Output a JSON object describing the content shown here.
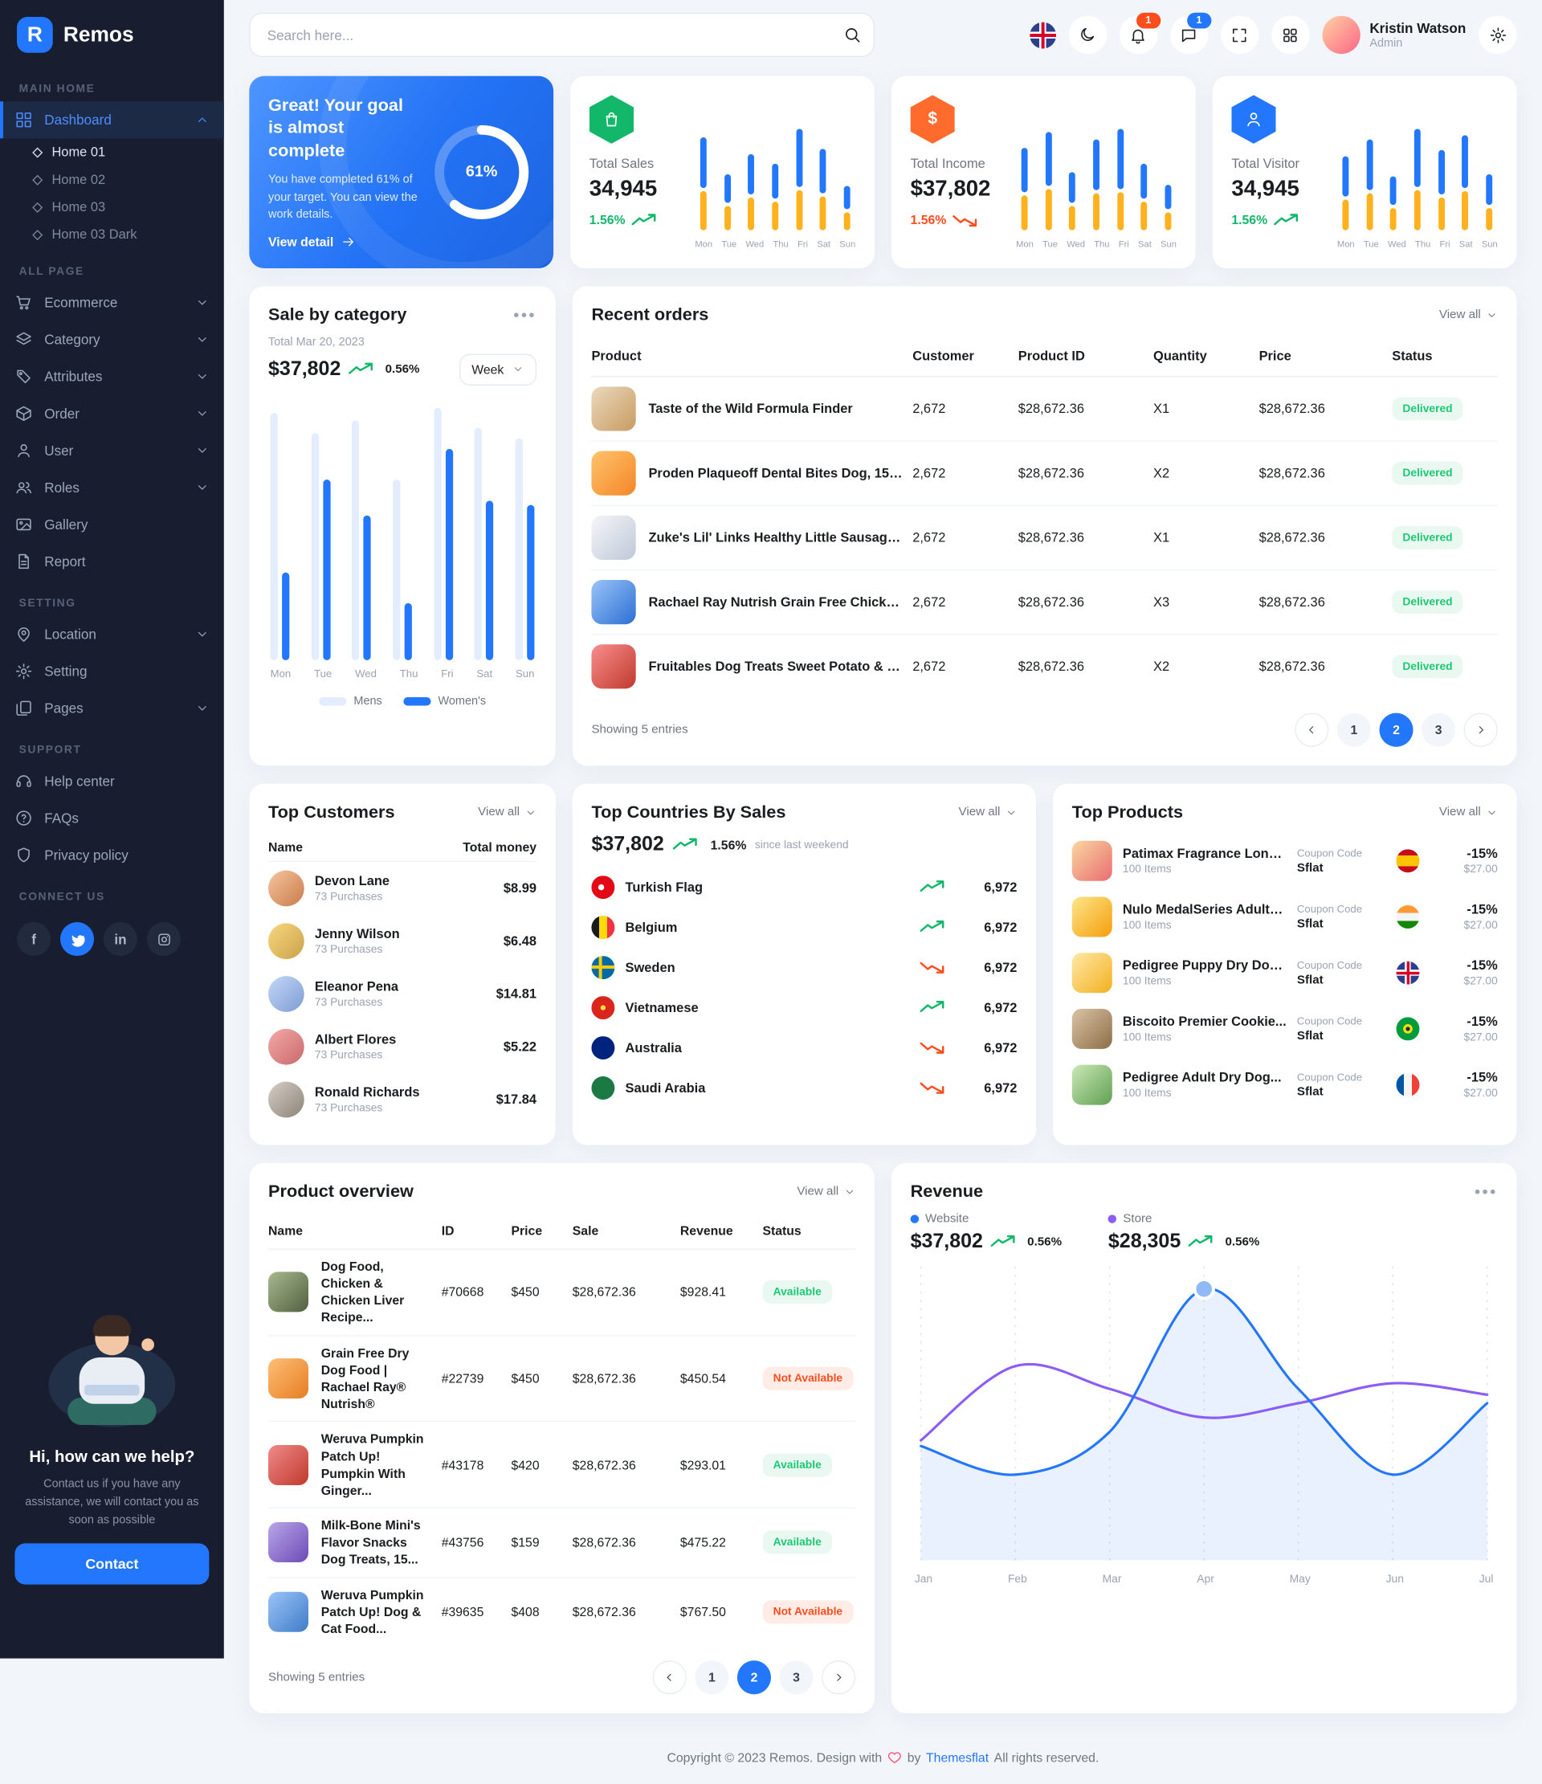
{
  "colors": {
    "accent": "#2377fc",
    "green": "#12b76a",
    "orange": "#ff6b2c",
    "yellow": "#ffb21d",
    "purple": "#8b5cf6",
    "red": "#ff4d1d"
  },
  "brand": {
    "logo_letter": "R",
    "name": "Remos"
  },
  "header": {
    "search_placeholder": "Search here...",
    "notification_badge": "1",
    "message_badge": "1",
    "user_name": "Kristin Watson",
    "user_role": "Admin"
  },
  "sidebar": {
    "section_main": "MAIN HOME",
    "section_all": "ALL PAGE",
    "section_setting": "SETTING",
    "section_support": "SUPPORT",
    "section_connect": "CONNECT US",
    "dashboard": "Dashboard",
    "home_items": [
      "Home 01",
      "Home 02",
      "Home 03",
      "Home 03 Dark"
    ],
    "all_page": [
      "Ecommerce",
      "Category",
      "Attributes",
      "Order",
      "User",
      "Roles",
      "Gallery",
      "Report"
    ],
    "setting_items": [
      "Location",
      "Setting",
      "Pages"
    ],
    "support_items": [
      "Help center",
      "FAQs",
      "Privacy policy"
    ],
    "help_title": "Hi, how can we help?",
    "help_text": "Contact us if you have any assistance, we will contact you as soon as possible",
    "contact_button": "Contact"
  },
  "goal_card": {
    "title": "Great! Your goal is almost complete",
    "body": "You have completed 61% of your target. You can view the work details.",
    "link": "View detail",
    "percent": 61,
    "percent_label": "61%"
  },
  "stats": [
    {
      "label": "Total Sales",
      "value": "34,945",
      "trend": "1.56%",
      "dir": "up",
      "color": "#12B76A",
      "days": [
        "Mon",
        "Tue",
        "Wed",
        "Thu",
        "Fri",
        "Sat",
        "Sun"
      ],
      "bars": [
        [
          50,
          38
        ],
        [
          28,
          24
        ],
        [
          40,
          32
        ],
        [
          34,
          28
        ],
        [
          58,
          40
        ],
        [
          44,
          33
        ],
        [
          22,
          18
        ]
      ]
    },
    {
      "label": "Total Income",
      "value": "$37,802",
      "trend": "1.56%",
      "dir": "down",
      "color": "#FF6B2C",
      "days": [
        "Mon",
        "Tue",
        "Wed",
        "Thu",
        "Fri",
        "Sat",
        "Sun"
      ],
      "bars": [
        [
          44,
          34
        ],
        [
          54,
          40
        ],
        [
          30,
          24
        ],
        [
          50,
          36
        ],
        [
          60,
          38
        ],
        [
          34,
          28
        ],
        [
          24,
          18
        ]
      ]
    },
    {
      "label": "Total Visitor",
      "value": "34,945",
      "trend": "1.56%",
      "dir": "up",
      "color": "#2377FC",
      "days": [
        "Mon",
        "Tue",
        "Wed",
        "Thu",
        "Fri",
        "Sat",
        "Sun"
      ],
      "bars": [
        [
          40,
          30
        ],
        [
          50,
          36
        ],
        [
          28,
          22
        ],
        [
          58,
          40
        ],
        [
          44,
          32
        ],
        [
          52,
          38
        ],
        [
          30,
          22
        ]
      ]
    }
  ],
  "sale_by_category": {
    "title": "Sale by category",
    "subtitle": "Total Mar 20, 2023",
    "value": "$37,802",
    "trend": "0.56%",
    "range": "Week",
    "days": [
      "Mon",
      "Tue",
      "Wed",
      "Thu",
      "Fri",
      "Sat",
      "Sun"
    ],
    "mens": [
      96,
      88,
      93,
      70,
      98,
      90,
      86
    ],
    "womens": [
      34,
      70,
      56,
      22,
      82,
      62,
      60
    ],
    "legend_mens": "Mens",
    "legend_womens": "Women's"
  },
  "recent_orders": {
    "title": "Recent orders",
    "view_all": "View all",
    "columns": [
      "Product",
      "Customer",
      "Product ID",
      "Quantity",
      "Price",
      "Status"
    ],
    "rows": [
      {
        "product": "Taste of the Wild Formula Finder",
        "customer": "2,672",
        "product_id": "$28,672.36",
        "quantity": "X1",
        "price": "$28,672.36",
        "status": "Delivered"
      },
      {
        "product": "Proden Plaqueoff Dental Bites Dog, 150 G",
        "customer": "2,672",
        "product_id": "$28,672.36",
        "quantity": "X2",
        "price": "$28,672.36",
        "status": "Delivered"
      },
      {
        "product": "Zuke's Lil' Links Healthy Little Sausage Links for Dogs...",
        "customer": "2,672",
        "product_id": "$28,672.36",
        "quantity": "X1",
        "price": "$28,672.36",
        "status": "Delivered"
      },
      {
        "product": "Rachael Ray Nutrish Grain Free Chicken Drumstick...",
        "customer": "2,672",
        "product_id": "$28,672.36",
        "quantity": "X3",
        "price": "$28,672.36",
        "status": "Delivered"
      },
      {
        "product": "Fruitables Dog Treats Sweet Potato & Pecan Flavor",
        "customer": "2,672",
        "product_id": "$28,672.36",
        "quantity": "X2",
        "price": "$28,672.36",
        "status": "Delivered"
      }
    ],
    "showing": "Showing 5 entries",
    "pages": [
      "1",
      "2",
      "3"
    ],
    "active_page": "2"
  },
  "top_customers": {
    "title": "Top Customers",
    "view_all": "View all",
    "col_name": "Name",
    "col_money": "Total money",
    "rows": [
      {
        "name": "Devon Lane",
        "purchases": "73 Purchases",
        "money": "$8.99"
      },
      {
        "name": "Jenny Wilson",
        "purchases": "73 Purchases",
        "money": "$6.48"
      },
      {
        "name": "Eleanor Pena",
        "purchases": "73 Purchases",
        "money": "$14.81"
      },
      {
        "name": "Albert Flores",
        "purchases": "73 Purchases",
        "money": "$5.22"
      },
      {
        "name": "Ronald Richards",
        "purchases": "73 Purchases",
        "money": "$17.84"
      }
    ]
  },
  "top_countries": {
    "title": "Top Countries By Sales",
    "view_all": "View all",
    "value": "$37,802",
    "trend": "1.56%",
    "note": "since last weekend",
    "rows": [
      {
        "name": "Turkish Flag",
        "value": "6,972",
        "dir": "up"
      },
      {
        "name": "Belgium",
        "value": "6,972",
        "dir": "up"
      },
      {
        "name": "Sweden",
        "value": "6,972",
        "dir": "down"
      },
      {
        "name": "Vietnamese",
        "value": "6,972",
        "dir": "up"
      },
      {
        "name": "Australia",
        "value": "6,972",
        "dir": "down"
      },
      {
        "name": "Saudi Arabia",
        "value": "6,972",
        "dir": "down"
      }
    ]
  },
  "top_products": {
    "title": "Top Products",
    "view_all": "View all",
    "coupon_label": "Coupon Code",
    "rows": [
      {
        "name": "Patimax Fragrance Long...",
        "items": "100 Items",
        "coupon": "Sflat",
        "discount": "-15%",
        "price": "$27.00"
      },
      {
        "name": "Nulo MedalSeries Adult Cat...",
        "items": "100 Items",
        "coupon": "Sflat",
        "discount": "-15%",
        "price": "$27.00"
      },
      {
        "name": "Pedigree Puppy Dry Dog...",
        "items": "100 Items",
        "coupon": "Sflat",
        "discount": "-15%",
        "price": "$27.00"
      },
      {
        "name": "Biscoito Premier Cookie...",
        "items": "100 Items",
        "coupon": "Sflat",
        "discount": "-15%",
        "price": "$27.00"
      },
      {
        "name": "Pedigree Adult Dry Dog...",
        "items": "100 Items",
        "coupon": "Sflat",
        "discount": "-15%",
        "price": "$27.00"
      }
    ]
  },
  "product_overview": {
    "title": "Product overview",
    "view_all": "View all",
    "columns": [
      "Name",
      "ID",
      "Price",
      "Sale",
      "Revenue",
      "Status"
    ],
    "rows": [
      {
        "name": "Dog Food, Chicken & Chicken Liver Recipe...",
        "id": "#70668",
        "price": "$450",
        "sale": "$28,672.36",
        "revenue": "$928.41",
        "status": "Available"
      },
      {
        "name": "Grain Free Dry Dog Food | Rachael Ray® Nutrish®",
        "id": "#22739",
        "price": "$450",
        "sale": "$28,672.36",
        "revenue": "$450.54",
        "status": "Not Available"
      },
      {
        "name": "Weruva Pumpkin Patch Up! Pumpkin With Ginger...",
        "id": "#43178",
        "price": "$420",
        "sale": "$28,672.36",
        "revenue": "$293.01",
        "status": "Available"
      },
      {
        "name": "Milk-Bone Mini's Flavor Snacks Dog Treats, 15...",
        "id": "#43756",
        "price": "$159",
        "sale": "$28,672.36",
        "revenue": "$475.22",
        "status": "Available"
      },
      {
        "name": "Weruva Pumpkin Patch Up! Dog & Cat Food...",
        "id": "#39635",
        "price": "$408",
        "sale": "$28,672.36",
        "revenue": "$767.50",
        "status": "Not Available"
      }
    ],
    "showing": "Showing 5 entries",
    "pages": [
      "1",
      "2",
      "3"
    ],
    "active_page": "2"
  },
  "revenue": {
    "title": "Revenue",
    "legend": [
      {
        "label": "Website",
        "value": "$37,802",
        "trend": "0.56%"
      },
      {
        "label": "Store",
        "value": "$28,305",
        "trend": "0.56%"
      }
    ],
    "months": [
      "Jan",
      "Feb",
      "Mar",
      "Apr",
      "May",
      "Jun",
      "Jul"
    ],
    "website": [
      40,
      30,
      45,
      95,
      60,
      30,
      55
    ],
    "store": [
      42,
      68,
      60,
      50,
      55,
      62,
      58
    ]
  },
  "footer": {
    "pre": "Copyright © 2023 Remos. Design with",
    "mid": "by",
    "brand": "Themesflat",
    "post": "All rights reserved."
  }
}
